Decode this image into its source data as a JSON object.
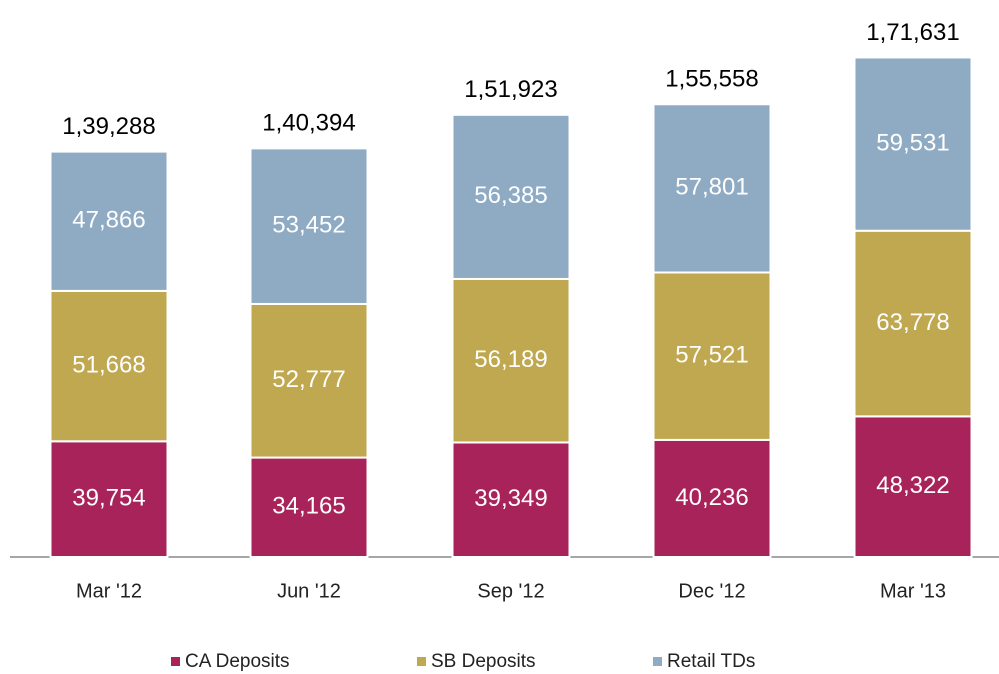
{
  "chart_data": {
    "type": "stacked_bar",
    "categories": [
      "Mar '12",
      "Jun '12",
      "Sep '12",
      "Dec '12",
      "Mar '13"
    ],
    "series": [
      {
        "name": "CA Deposits",
        "color": "#a8235a",
        "values": [
          39754,
          34165,
          39349,
          40236,
          48322
        ],
        "value_labels": [
          "39,754",
          "34,165",
          "39,349",
          "40,236",
          "48,322"
        ]
      },
      {
        "name": "SB Deposits",
        "color": "#bfa84f",
        "values": [
          51668,
          52777,
          56189,
          57521,
          63778
        ],
        "value_labels": [
          "51,668",
          "52,777",
          "56,189",
          "57,521",
          "63,778"
        ]
      },
      {
        "name": "Retail TDs",
        "color": "#8eabc3",
        "values": [
          47866,
          53452,
          56385,
          57801,
          59531
        ],
        "value_labels": [
          "47,866",
          "53,452",
          "56,385",
          "57,801",
          "59,531"
        ]
      }
    ],
    "totals": [
      139288,
      140394,
      151923,
      155558,
      171631
    ],
    "total_labels": [
      "1,39,288",
      "1,40,394",
      "1,51,923",
      "1,55,558",
      "1,71,631"
    ],
    "ylim": [
      0,
      190000
    ],
    "legend": "bottom"
  }
}
